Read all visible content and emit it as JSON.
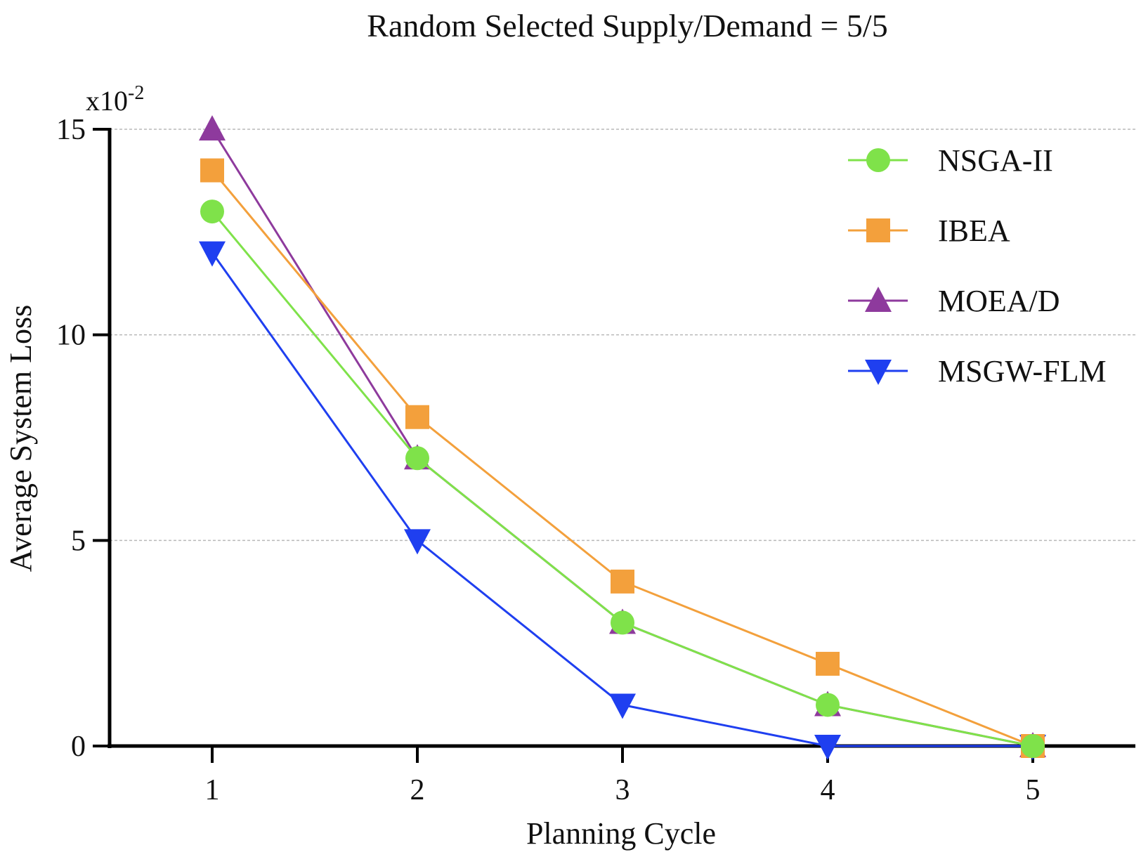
{
  "chart_data": {
    "type": "line",
    "title": "Random Selected Supply/Demand = 5/5",
    "xlabel": "Planning Cycle",
    "ylabel": "Average System Loss",
    "y_scale_label": "x10",
    "y_scale_exponent": "-2",
    "x": [
      1,
      2,
      3,
      4,
      5
    ],
    "xlim": [
      0.5,
      5.5
    ],
    "ylim": [
      0,
      15
    ],
    "y_ticks": [
      0,
      5,
      10,
      15
    ],
    "grid": "horizontal dashed",
    "legend_position": "top-right",
    "series": [
      {
        "name": "NSGA-II",
        "values": [
          13,
          7,
          3,
          1,
          0
        ],
        "color": "#7fe24a",
        "marker": "circle"
      },
      {
        "name": "IBEA",
        "values": [
          14,
          8,
          4,
          2,
          0
        ],
        "color": "#f3a03c",
        "marker": "square"
      },
      {
        "name": "MOEA/D",
        "values": [
          15,
          7,
          3,
          1,
          0
        ],
        "color": "#8e3a9d",
        "marker": "triangle-up"
      },
      {
        "name": "MSGW-FLM",
        "values": [
          12,
          5,
          1,
          0,
          0
        ],
        "color": "#1f3ff0",
        "marker": "triangle-down"
      }
    ],
    "draw_order": [
      3,
      2,
      1,
      0
    ]
  }
}
